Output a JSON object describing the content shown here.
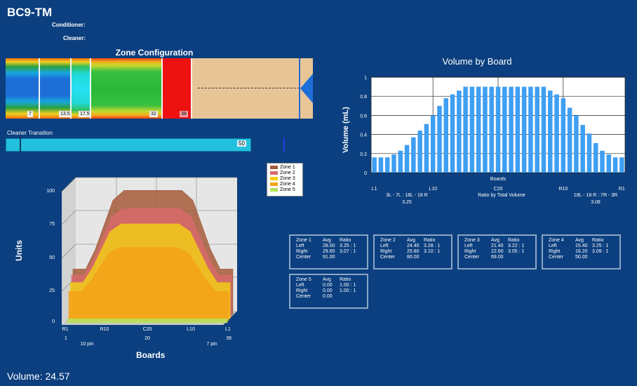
{
  "app": {
    "title": "BC9-TM",
    "conditioner_label": "Conditioner:",
    "cleaner_label": "Cleaner:"
  },
  "zone_config": {
    "title": "Zone Configuration",
    "markers": [
      "7",
      "13.5",
      "17.5",
      "32",
      "38"
    ]
  },
  "cleaner_transition": {
    "label": "Cleaner Transition",
    "value": "50"
  },
  "colors": {
    "background": "#0b3f7f",
    "zone1": "#a45a3a",
    "zone2": "#d86a6a",
    "zone3": "#f2cc18",
    "zone4": "#f5a21a",
    "zone5": "#b6e05a",
    "volume_bar": "#3f9ff2"
  },
  "left_chart": {
    "ylabel": "Units",
    "xlabel": "Boards",
    "yticks": [
      "100",
      "75",
      "50",
      "25",
      "0"
    ],
    "xticks": [
      "R1",
      "R10",
      "C20",
      "L10",
      "L1"
    ],
    "xsub": [
      "1",
      "10 pin",
      "20",
      "7 pin",
      "39"
    ],
    "legend": [
      "Zone 1",
      "Zone 2",
      "Zone 3",
      "Zone 4",
      "Zone 5"
    ]
  },
  "chart_data": [
    {
      "type": "bar",
      "title": "Volume by Board",
      "xlabel": "Boards",
      "ylabel": "Volume (mL)",
      "ylim": [
        0,
        1
      ],
      "yticks": [
        "1",
        "0.8",
        "0.6",
        "0.4",
        "0.2",
        "0"
      ],
      "xtick_labels": [
        "L1",
        "L10",
        "C20",
        "R10",
        "R1"
      ],
      "categories": [
        "L1",
        "L2",
        "L3",
        "L4",
        "L5",
        "L6",
        "L7",
        "L8",
        "L9",
        "L10",
        "L11",
        "L12",
        "L13",
        "L14",
        "L15",
        "L16",
        "L17",
        "L18",
        "L19",
        "C20",
        "R19",
        "R18",
        "R17",
        "R16",
        "R15",
        "R14",
        "R13",
        "R12",
        "R11",
        "R10",
        "R9",
        "R8",
        "R7",
        "R6",
        "R5",
        "R4",
        "R3",
        "R2",
        "R1"
      ],
      "values": [
        0.16,
        0.16,
        0.16,
        0.19,
        0.23,
        0.29,
        0.37,
        0.44,
        0.51,
        0.6,
        0.7,
        0.78,
        0.82,
        0.86,
        0.9,
        0.9,
        0.9,
        0.9,
        0.9,
        0.9,
        0.9,
        0.9,
        0.9,
        0.9,
        0.9,
        0.9,
        0.9,
        0.86,
        0.82,
        0.78,
        0.68,
        0.6,
        0.5,
        0.41,
        0.31,
        0.23,
        0.19,
        0.16,
        0.16
      ],
      "ratio_left_text": "3L - 7L : 18L - 18 R",
      "ratio_left_value": "3.25",
      "ratio_center_text": "Ratio by Total Volume",
      "ratio_right_text": "18L - 18 R : 7R - 3R",
      "ratio_right_value": "3.08",
      "grid": true
    },
    {
      "type": "area",
      "title": "",
      "xlabel": "Boards",
      "ylabel": "Units",
      "ylim": [
        0,
        100
      ],
      "series": [
        {
          "name": "Zone 1",
          "peak": 93,
          "base": 34
        },
        {
          "name": "Zone 2",
          "peak": 81,
          "base": 31
        },
        {
          "name": "Zone 3",
          "peak": 71,
          "base": 27
        },
        {
          "name": "Zone 4",
          "peak": 55,
          "base": 22
        },
        {
          "name": "Zone 5",
          "peak": 3,
          "base": 3
        }
      ]
    }
  ],
  "zone_boxes": [
    {
      "title": "Zone 1",
      "h_avg": "Avg",
      "h_ratio": "Ratio",
      "left_label": "Left",
      "left_avg": "28.00",
      "left_ratio": "3.25 : 1",
      "right_label": "Right",
      "right_avg": "29.60",
      "right_ratio": "3.07 : 1",
      "center_label": "Center",
      "center_avg": "91.00"
    },
    {
      "title": "Zone 2",
      "h_avg": "Avg",
      "h_ratio": "Ratio",
      "left_label": "Left",
      "left_avg": "24.40",
      "left_ratio": "3.28 : 1",
      "right_label": "Right",
      "right_avg": "25.80",
      "right_ratio": "3.10 : 1",
      "center_label": "Center",
      "center_avg": "80.00"
    },
    {
      "title": "Zone 3",
      "h_avg": "Avg",
      "h_ratio": "Ratio",
      "left_label": "Left",
      "left_avg": "21.40",
      "left_ratio": "3.22 : 1",
      "right_label": "Right",
      "right_avg": "22.60",
      "right_ratio": "3.05 : 1",
      "center_label": "Center",
      "center_avg": "69.00"
    },
    {
      "title": "Zone 4",
      "h_avg": "Avg",
      "h_ratio": "Ratio",
      "left_label": "Left",
      "left_avg": "15.40",
      "left_ratio": "3.25 : 1",
      "right_label": "Right",
      "right_avg": "16.20",
      "right_ratio": "3.09 : 1",
      "center_label": "Center",
      "center_avg": "50.00"
    },
    {
      "title": "Zone 5",
      "h_avg": "Avg",
      "h_ratio": "Ratio",
      "left_label": "Left",
      "left_avg": "0.00",
      "left_ratio": "1.00 : 1",
      "right_label": "Right",
      "right_avg": "0.00",
      "right_ratio": "1.00 : 1",
      "center_label": "Center",
      "center_avg": "0.00"
    }
  ],
  "volume_readout": "Volume: 24.57"
}
